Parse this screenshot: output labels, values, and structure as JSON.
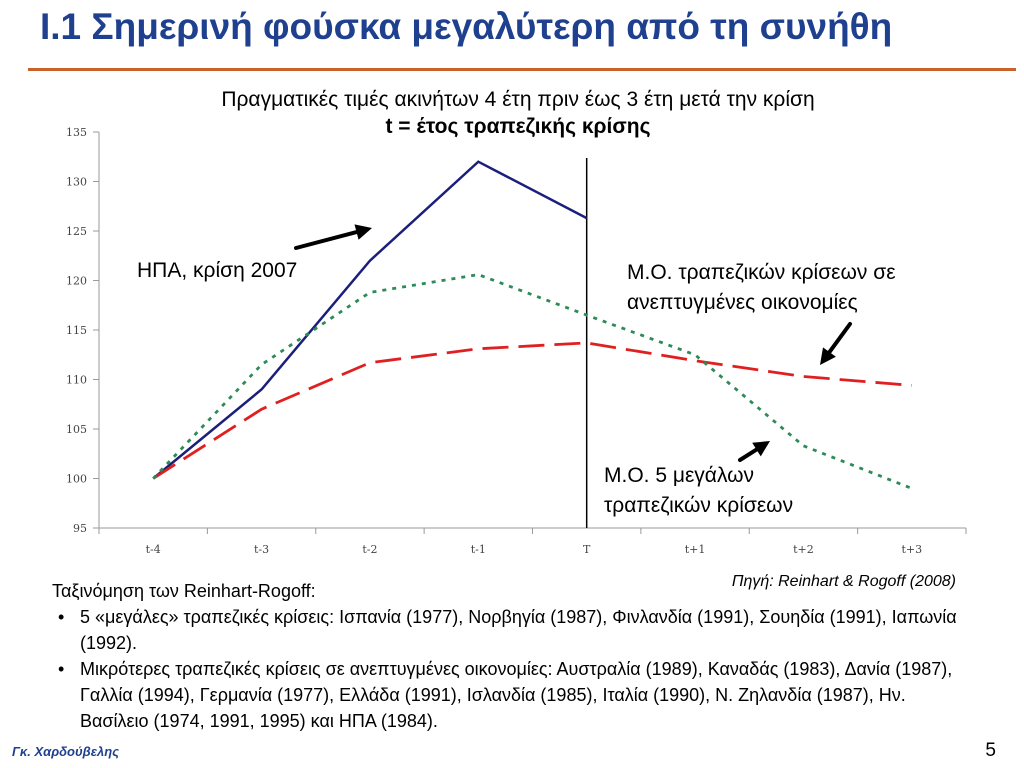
{
  "slide": {
    "title": "I.1 Σημερινή φούσκα μεγαλύτερη από τη συνήθη",
    "author": "Γκ. Χαρδούβελης",
    "page_number": "5",
    "accent_color": "#c8622a",
    "title_color": "#1f3f8f"
  },
  "chart_data": {
    "type": "line",
    "title": "Πραγματικές τιμές ακινήτων 4 έτη πριν έως 3 έτη μετά την κρίση",
    "subtitle": "t = έτος τραπεζικής κρίσης",
    "categories": [
      "t-4",
      "t-3",
      "t-2",
      "t-1",
      "T",
      "t+1",
      "t+2",
      "t+3"
    ],
    "ylim": [
      95,
      135
    ],
    "yticks": [
      95,
      100,
      105,
      110,
      115,
      120,
      125,
      130,
      135
    ],
    "grid": false,
    "crisis_marker": "T",
    "series": [
      {
        "key": "usa",
        "label": "ΗΠΑ, κρίση 2007",
        "color": "#1b1f7a",
        "style": "solid",
        "values": [
          100,
          109,
          122,
          132,
          126.3,
          null,
          null,
          null
        ]
      },
      {
        "key": "advanced",
        "label": "Μ.Ο. τραπεζικών κρίσεων σε ανεπτυγμένες οικονομίες",
        "color": "#e02020",
        "style": "dashed",
        "values": [
          100,
          107,
          111.7,
          113.1,
          113.7,
          111.9,
          110.3,
          109.4
        ]
      },
      {
        "key": "big5",
        "label": "Μ.Ο. 5 μεγάλων τραπεζικών κρίσεων",
        "color": "#2e8b57",
        "style": "dotted",
        "values": [
          100,
          111.5,
          118.8,
          120.6,
          116.5,
          112.5,
          103.3,
          99
        ]
      }
    ]
  },
  "annotations": {
    "usa": "ΗΠΑ, κρίση 2007",
    "advanced_line1": "Μ.Ο. τραπεζικών κρίσεων σε",
    "advanced_line2": "ανεπτυγμένες οικονομίες",
    "big5_line1": "Μ.Ο. 5 μεγάλων",
    "big5_line2": "τραπεζικών κρίσεων"
  },
  "source": "Πηγή: Reinhart & Rogoff (2008)",
  "notes": {
    "heading": "Ταξινόμηση των Reinhart-Rogoff:",
    "bullets": [
      "5 «μεγάλες» τραπεζικές κρίσεις: Ισπανία (1977), Νορβηγία (1987), Φινλανδία (1991), Σουηδία (1991), Ιαπωνία (1992).",
      "Μικρότερες τραπεζικές κρίσεις σε ανεπτυγμένες οικονομίες: Αυστραλία (1989), Καναδάς (1983), Δανία (1987), Γαλλία (1994), Γερμανία (1977), Ελλάδα (1991), Ισλανδία (1985), Ιταλία (1990), Ν. Ζηλανδία (1987), Ην. Βασίλειο (1974, 1991, 1995) και ΗΠΑ (1984)."
    ]
  }
}
